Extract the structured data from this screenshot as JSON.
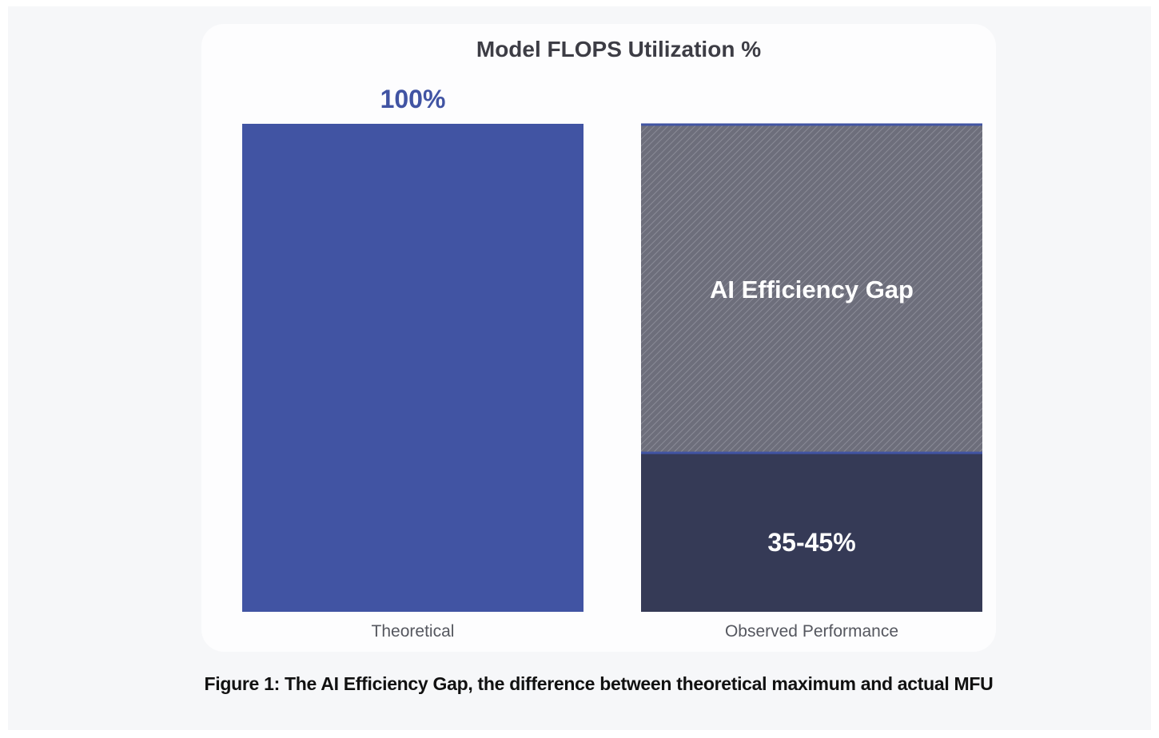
{
  "chart_data": {
    "type": "bar",
    "title": "Model FLOPS Utilization %",
    "categories": [
      "Theoretical",
      "Observed Performance"
    ],
    "values": [
      100,
      40
    ],
    "value_labels": [
      "100%",
      "35-45%"
    ],
    "gap_label": "AI Efficiency Gap",
    "ylim": [
      0,
      100
    ],
    "grid": false,
    "colors": {
      "theoretical": "#4154a3",
      "observed": "#353a56",
      "gap": "#6b6c7a",
      "gap_border": "#4154a3",
      "title": "#3d3d45",
      "value_label_top": "#4154a3",
      "value_label_inside": "#ffffff",
      "tick": "#55575f"
    }
  },
  "caption": "Figure 1: The AI Efficiency Gap, the difference between theoretical maximum and actual MFU"
}
